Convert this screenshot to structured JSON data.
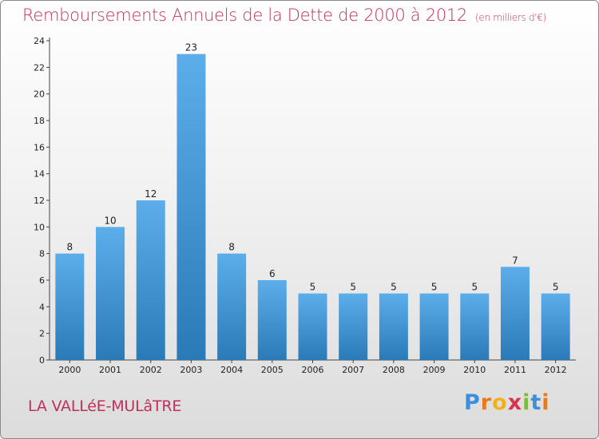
{
  "chart_data": {
    "type": "bar",
    "title": "Remboursements Annuels de la Dette de 2000 à 2012",
    "subtitle": "(en milliers d'€)",
    "categories": [
      "2000",
      "2001",
      "2002",
      "2003",
      "2004",
      "2005",
      "2006",
      "2007",
      "2008",
      "2009",
      "2010",
      "2011",
      "2012"
    ],
    "values": [
      8,
      10,
      12,
      23,
      8,
      6,
      5,
      5,
      5,
      5,
      5,
      7,
      5
    ],
    "ylim": [
      0,
      24
    ],
    "yticks": [
      0,
      2,
      4,
      6,
      8,
      10,
      12,
      14,
      16,
      18,
      20,
      22,
      24
    ],
    "grid": false,
    "bar_color_top": "#5caeea",
    "bar_color_bottom": "#2a7ab8"
  },
  "footer": {
    "commune": "LA VALLéE-MULâTRE",
    "logo": [
      "P",
      "r",
      "o",
      "x",
      "i",
      "t",
      "i"
    ]
  }
}
